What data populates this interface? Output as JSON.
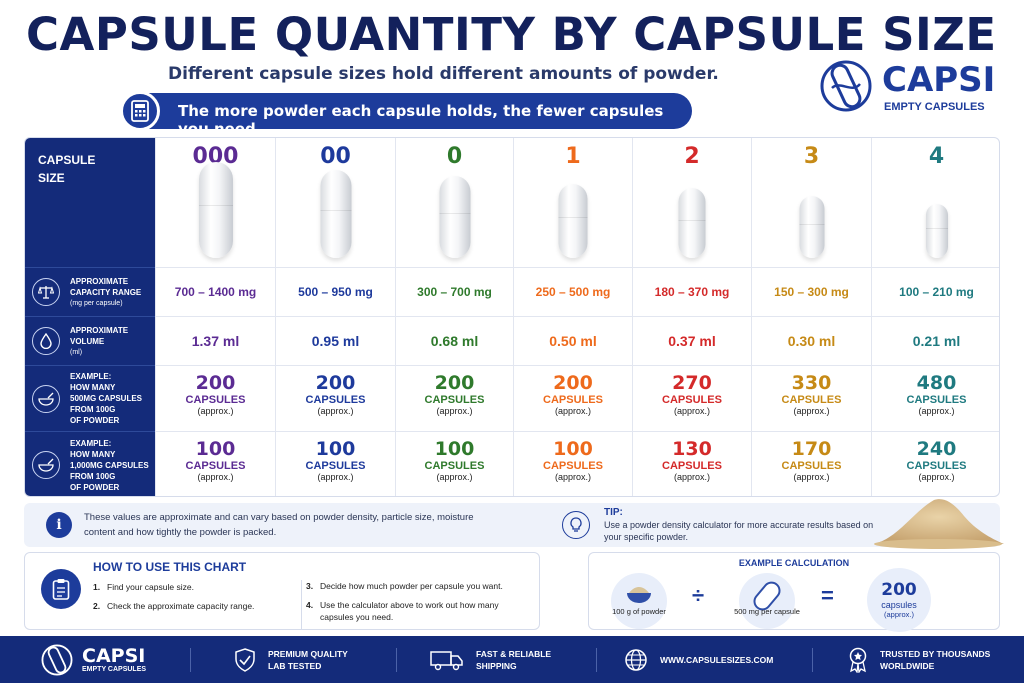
{
  "title": "CAPSULE QUANTITY BY CAPSULE SIZE",
  "subtitle": "Different capsule sizes hold different amounts of powder.",
  "banner": "The more powder each capsule holds, the fewer capsules you need.",
  "brand": {
    "name": "CAPSI",
    "tagline": "EMPTY CAPSULES"
  },
  "table": {
    "size_label_1": "CAPSULE",
    "size_label_2": "SIZE",
    "row_labels": {
      "range": {
        "l1": "APPROXIMATE",
        "l2": "CAPACITY RANGE",
        "sub": "(mg per capsule)"
      },
      "volume": {
        "l1": "APPROXIMATE",
        "l2": "VOLUME",
        "sub": "(ml)"
      },
      "ex500": {
        "l1": "EXAMPLE:",
        "l2": "HOW MANY",
        "l3": "500mg CAPSULES",
        "l4": "FROM 100G",
        "l5": "OF POWDER"
      },
      "ex1000": {
        "l1": "EXAMPLE:",
        "l2": "HOW MANY",
        "l3": "1,000mg CAPSULES",
        "l4": "FROM 100G",
        "l5": "OF POWDER"
      }
    },
    "unit": "CAPSULES",
    "approx": "(approx.)",
    "sizes": [
      {
        "size": "000",
        "color": "#5b2b93",
        "range": "700 – 1400 mg",
        "volume": "1.37 ml",
        "ex500": "200",
        "ex1000": "100"
      },
      {
        "size": "00",
        "color": "#1e3a9c",
        "range": "500 – 950 mg",
        "volume": "0.95 ml",
        "ex500": "200",
        "ex1000": "100"
      },
      {
        "size": "0",
        "color": "#2f7a2c",
        "range": "300 – 700 mg",
        "volume": "0.68 ml",
        "ex500": "200",
        "ex1000": "100"
      },
      {
        "size": "1",
        "color": "#ee6a1c",
        "range": "250 – 500 mg",
        "volume": "0.50 ml",
        "ex500": "200",
        "ex1000": "100"
      },
      {
        "size": "2",
        "color": "#d42a2a",
        "range": "180 – 370 mg",
        "volume": "0.37 ml",
        "ex500": "270",
        "ex1000": "130"
      },
      {
        "size": "3",
        "color": "#c68a16",
        "range": "150 – 300 mg",
        "volume": "0.30 ml",
        "ex500": "330",
        "ex1000": "170"
      },
      {
        "size": "4",
        "color": "#1f7a80",
        "range": "100 – 210 mg",
        "volume": "0.21 ml",
        "ex500": "480",
        "ex1000": "240"
      }
    ]
  },
  "note": {
    "text": "These values are approximate and can vary based on powder density, particle size, moisture content and how tightly the powder is packed.",
    "tip_head": "TIP:",
    "tip_text": "Use a powder density calculator for more accurate results based on your specific powder."
  },
  "howto": {
    "head": "HOW TO USE THIS CHART",
    "steps": [
      {
        "n": "1.",
        "t": "Find your capsule size."
      },
      {
        "n": "2.",
        "t": "Check the approximate capacity range."
      },
      {
        "n": "3.",
        "t": "Decide how much powder per capsule you want."
      },
      {
        "n": "4.",
        "t": "Use the calculator above to work out how many capsules you need."
      }
    ]
  },
  "calc": {
    "head": "EXAMPLE CALCULATION",
    "a": "100 g of powder",
    "op1": "÷",
    "b": "500 mg per capsule",
    "op2": "=",
    "result": "200",
    "result_unit": "capsules",
    "result_approx": "(approx.)"
  },
  "footer": {
    "brand": "CAPSI",
    "brand_tag": "EMPTY CAPSULES",
    "items": [
      {
        "l1": "PREMIUM QUALITY",
        "l2": "LAB TESTED",
        "icon": "shield-check-icon"
      },
      {
        "l1": "FAST & RELIABLE",
        "l2": "SHIPPING",
        "icon": "truck-icon"
      },
      {
        "l1": "WWW.CAPSULESIZES.COM",
        "l2": "",
        "icon": "globe-icon"
      },
      {
        "l1": "TRUSTED BY THOUSANDS",
        "l2": "WORLDWIDE",
        "icon": "award-icon"
      }
    ]
  }
}
